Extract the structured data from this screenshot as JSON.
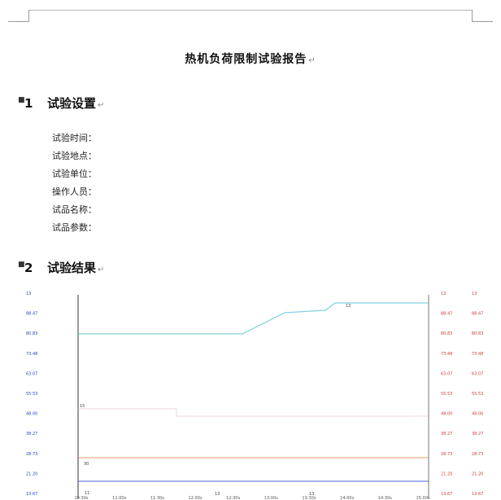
{
  "document": {
    "title": "热机负荷限制试验报告",
    "pilcrow": "↵",
    "sections": [
      {
        "number": "1",
        "title": "试验设置"
      },
      {
        "number": "2",
        "title": "试验结果"
      }
    ],
    "fields": [
      "试验时间：",
      "试验地点：",
      "试验单位：",
      "操作人员：",
      "试品名称：",
      "试品参数："
    ]
  },
  "chart_data": {
    "type": "line",
    "y_ticks_left": [
      "13",
      "88.47",
      "80.83",
      "73.48",
      "63.07",
      "55.53",
      "48.00",
      "38.27",
      "28.73",
      "21.20",
      "13.67"
    ],
    "y_ticks_right1": [
      "13",
      "88.47",
      "80.83",
      "73.48",
      "63.07",
      "55.53",
      "48.00",
      "38.27",
      "28.73",
      "21.20",
      "13.67"
    ],
    "y_ticks_right2": [
      "13",
      "88.47",
      "80.83",
      "73.48",
      "63.07",
      "55.53",
      "48.00",
      "38.27",
      "28.73",
      "21.20",
      "13.67"
    ],
    "x_ticks": [
      "10:30s",
      "11:00s",
      "11:30s",
      "12:00s",
      "12:30s",
      "13:00s",
      "13:30s",
      "14:00s",
      "14:30s",
      "15:00s"
    ],
    "annotations": [
      "13",
      "15",
      "30",
      "11",
      "13",
      "13"
    ],
    "colors": {
      "left_axis": "#2b3fc0",
      "right_axis": "#d23a3a",
      "cyan": "#7fd0e0",
      "orange": "#e39a6e",
      "blue": "#5060d8"
    }
  }
}
